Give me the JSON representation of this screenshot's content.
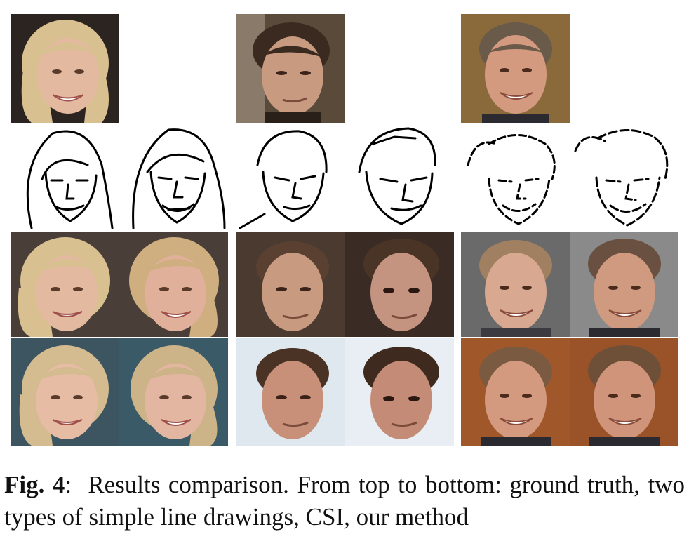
{
  "caption": {
    "label": "Fig. 4",
    "separator": ":",
    "text": "Results comparison.  From top to bottom:  ground truth, two types of simple line drawings, CSI, our method"
  },
  "palette": {
    "subject_1": {
      "hair": "#d8c090",
      "skin": "#e3b9a0",
      "bg_ground_truth": "#2b2420",
      "bg_csi": "#4a3f38",
      "bg_ours": "#3d5560"
    },
    "subject_2": {
      "hair": "#3a2a20",
      "skin": "#c89a80",
      "bg_ground_truth": "#5a4a3a",
      "bg_csi": "#4a3a30",
      "bg_ours": "#dfe8ef"
    },
    "subject_3": {
      "hair": "#6a5a4a",
      "skin": "#d49a80",
      "bg_ground_truth": "#8a6a3a",
      "bg_csi": "#6a6a6a",
      "bg_ours": "#a0582a"
    }
  }
}
